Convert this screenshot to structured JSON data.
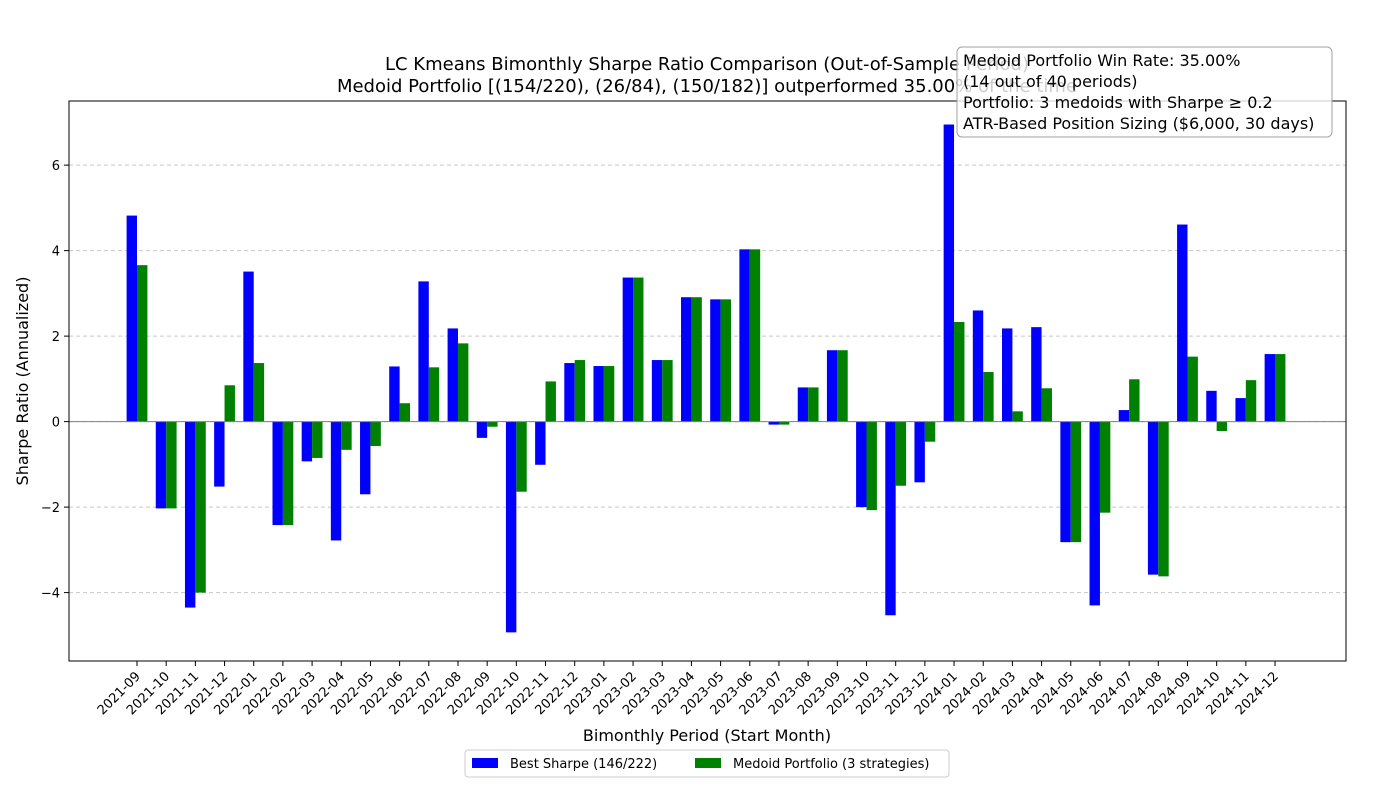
{
  "chart_data": {
    "type": "bar",
    "title": "LC Kmeans Bimonthly Sharpe Ratio Comparison (Out-of-Sample Period)",
    "subtitle": "Medoid Portfolio [(154/220), (26/84), (150/182)] outperformed 35.00% of the time",
    "xlabel": "Bimonthly Period (Start Month)",
    "ylabel": "Sharpe Ratio (Annualized)",
    "ylim": [
      -5.6,
      7.5
    ],
    "yticks": [
      -4,
      -2,
      0,
      2,
      4,
      6
    ],
    "ytick_labels": [
      "−4",
      "−2",
      "0",
      "2",
      "4",
      "6"
    ],
    "grid": "horizontal dashed",
    "legend_position": "bottom-center",
    "categories": [
      "2021-09",
      "2021-10",
      "2021-11",
      "2021-12",
      "2022-01",
      "2022-02",
      "2022-03",
      "2022-04",
      "2022-05",
      "2022-06",
      "2022-07",
      "2022-08",
      "2022-09",
      "2022-10",
      "2022-11",
      "2022-12",
      "2023-01",
      "2023-02",
      "2023-03",
      "2023-04",
      "2023-05",
      "2023-06",
      "2023-07",
      "2023-08",
      "2023-09",
      "2023-10",
      "2023-11",
      "2023-12",
      "2024-01",
      "2024-02",
      "2024-03",
      "2024-04",
      "2024-05",
      "2024-06",
      "2024-07",
      "2024-08",
      "2024-09",
      "2024-10",
      "2024-11",
      "2024-12"
    ],
    "series": [
      {
        "name": "Best Sharpe (146/222)",
        "color": "#0000ff",
        "values": [
          4.82,
          -2.03,
          -4.35,
          -1.52,
          3.51,
          -2.42,
          -0.93,
          -2.78,
          -1.7,
          1.29,
          3.28,
          2.18,
          -0.38,
          -4.93,
          -1.01,
          1.37,
          1.3,
          3.37,
          1.44,
          2.91,
          2.86,
          4.03,
          -0.07,
          0.8,
          1.67,
          -2.0,
          -4.53,
          -1.42,
          6.95,
          2.6,
          2.18,
          2.21,
          -2.82,
          -4.3,
          0.27,
          -3.58,
          4.61,
          0.72,
          0.55,
          1.58
        ]
      },
      {
        "name": "Medoid Portfolio (3 strategies)",
        "color": "#008000",
        "values": [
          3.66,
          -2.03,
          -4.0,
          0.85,
          1.37,
          -2.42,
          -0.85,
          -0.66,
          -0.57,
          0.43,
          1.27,
          1.83,
          -0.12,
          -1.64,
          0.94,
          1.44,
          1.3,
          3.37,
          1.44,
          2.91,
          2.86,
          4.03,
          -0.07,
          0.8,
          1.67,
          -2.07,
          -1.5,
          -0.47,
          2.33,
          1.16,
          0.24,
          0.78,
          -2.82,
          -2.13,
          0.99,
          -3.62,
          1.52,
          -0.22,
          0.97,
          1.58
        ]
      }
    ],
    "annotation": {
      "lines": [
        "Medoid Portfolio Win Rate: 35.00%",
        "(14 out of 40 periods)",
        "Portfolio: 3 medoids with Sharpe ≥ 0.2",
        "ATR-Based Position Sizing ($6,000, 30 days)"
      ]
    }
  }
}
